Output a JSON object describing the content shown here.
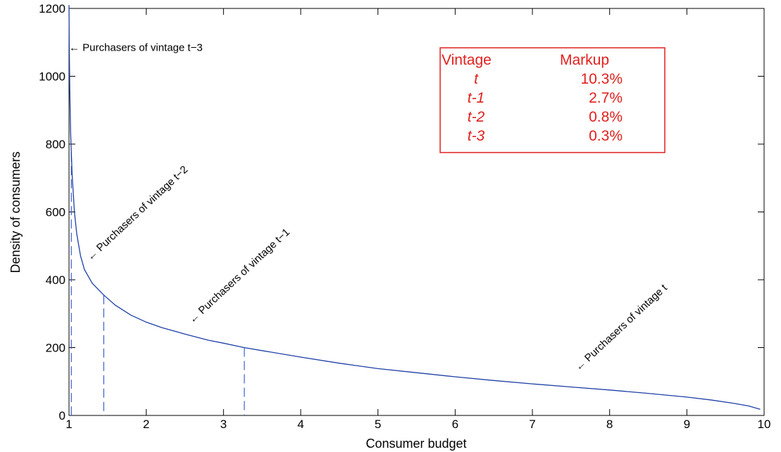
{
  "chart_data": {
    "type": "line",
    "title": "",
    "xlabel": "Consumer budget",
    "ylabel": "Density of consumers",
    "xlim": [
      1,
      10
    ],
    "ylim": [
      0,
      1200
    ],
    "grid": false,
    "xticks": [
      1,
      2,
      3,
      4,
      5,
      6,
      7,
      8,
      9,
      10
    ],
    "yticks": [
      0,
      200,
      400,
      600,
      800,
      1000,
      1200
    ],
    "series": [
      {
        "color": "#1f3fa6",
        "x": [
          1.0,
          1.003,
          1.01,
          1.02,
          1.04,
          1.07,
          1.1,
          1.15,
          1.2,
          1.3,
          1.45,
          1.6,
          1.8,
          2.0,
          2.2,
          2.5,
          2.8,
          3.0,
          3.27,
          3.5,
          4.0,
          4.5,
          5.0,
          5.5,
          6.0,
          6.5,
          7.0,
          7.5,
          8.0,
          8.5,
          9.0,
          9.3,
          9.6,
          9.8,
          9.95
        ],
        "y": [
          1210,
          1100,
          960,
          840,
          710,
          600,
          535,
          470,
          430,
          390,
          355,
          325,
          296,
          275,
          259,
          240,
          222,
          213,
          200,
          191,
          172,
          154,
          138,
          126,
          114,
          103,
          93,
          84,
          75,
          65,
          54,
          46,
          36,
          28,
          18
        ]
      }
    ],
    "cutoffs": [
      {
        "x": 1.03,
        "y_top": 775
      },
      {
        "x": 1.45,
        "y_top": 355
      },
      {
        "x": 3.27,
        "y_top": 200
      }
    ],
    "annotations": [
      {
        "text": "Purchasers of vintage t−3",
        "x": 1.0,
        "y": 1075,
        "angle": 0
      },
      {
        "text": "Purchasers of vintage t−2",
        "x": 1.28,
        "y": 455,
        "angle": -43
      },
      {
        "text": "Purchasers of vintage t−1",
        "x": 2.6,
        "y": 270,
        "angle": -43
      },
      {
        "text": "Purchasers of vintage t",
        "x": 7.6,
        "y": 130,
        "angle": -43
      }
    ],
    "markup_table": {
      "header": [
        "Vintage",
        "Markup"
      ],
      "rows": [
        {
          "vintage": "t",
          "markup": "10.3%"
        },
        {
          "vintage": "t-1",
          "markup": "2.7%"
        },
        {
          "vintage": "t-2",
          "markup": "0.8%"
        },
        {
          "vintage": "t-3",
          "markup": "0.3%"
        }
      ],
      "color": "#e0201e"
    }
  }
}
